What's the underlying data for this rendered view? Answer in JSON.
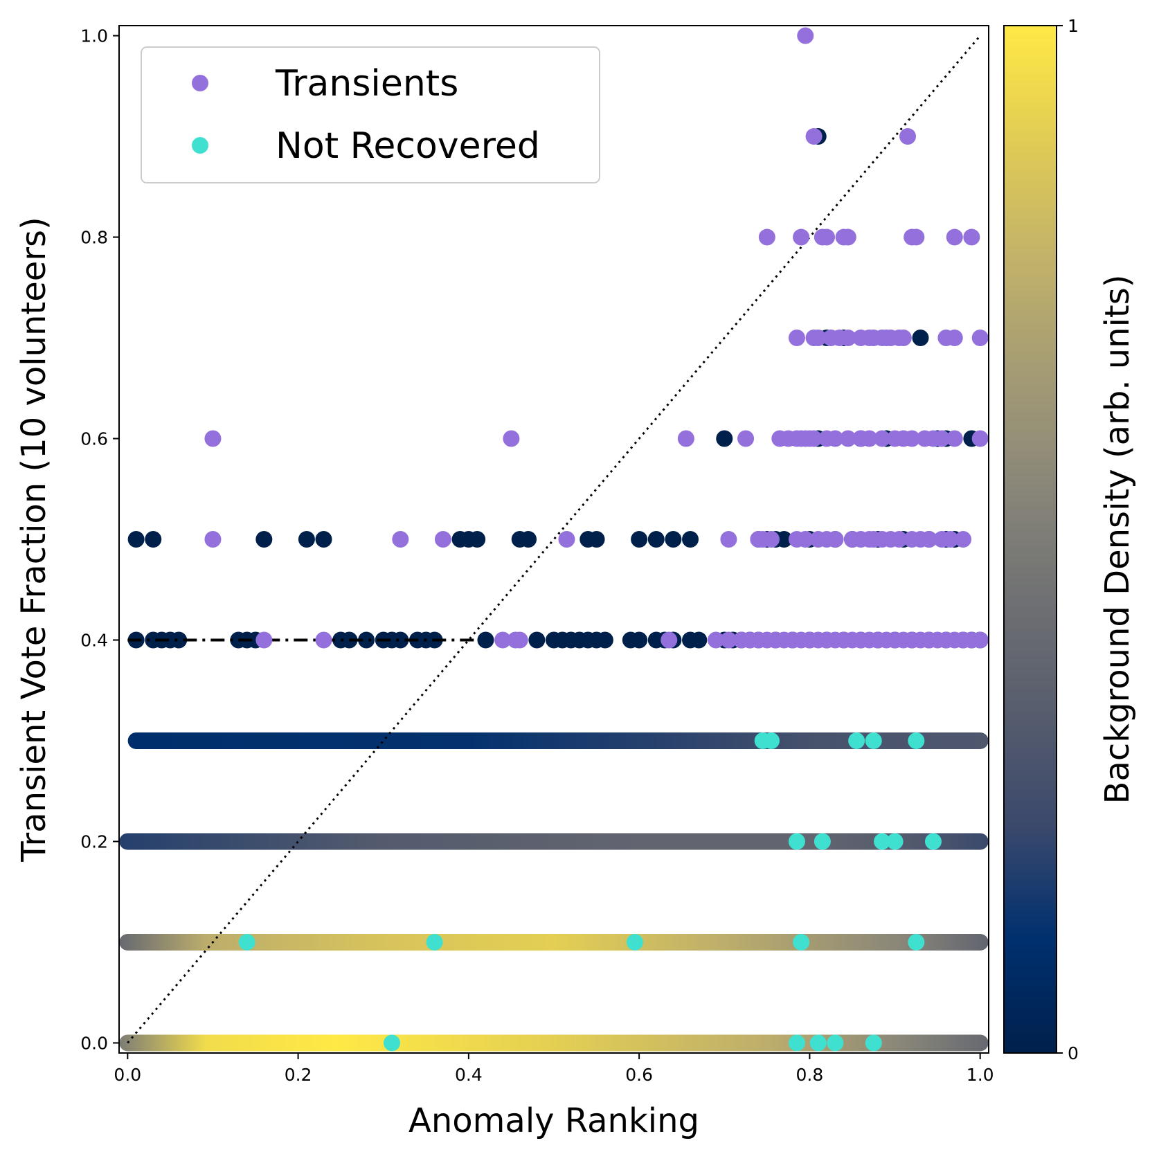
{
  "chart_data": {
    "type": "scatter",
    "title": "",
    "xlabel": "Anomaly Ranking",
    "ylabel": "Transient Vote Fraction (10 volunteers)",
    "xlim": [
      -0.01,
      1.01
    ],
    "ylim": [
      -0.01,
      1.01
    ],
    "xticks": [
      "0.0",
      "0.2",
      "0.4",
      "0.6",
      "0.8",
      "1.0"
    ],
    "yticks": [
      "0.0",
      "0.2",
      "0.4",
      "0.6",
      "0.8",
      "1.0"
    ],
    "colorbar": {
      "label": "Background Density (arb. units)",
      "min_label": "0",
      "max_label": "1",
      "colors": [
        "#00204c",
        "#00306f",
        "#3b496c",
        "#575d6d",
        "#707173",
        "#8a8779",
        "#a59c74",
        "#c3b369",
        "#e1cc55",
        "#ffe945"
      ]
    },
    "legend": {
      "position": "top-left",
      "entries": [
        {
          "label": "Transients",
          "color": "#9370db"
        },
        {
          "label": "Not Recovered",
          "color": "#40e0d0"
        }
      ]
    },
    "reference_line": {
      "style": "dotted",
      "from": [
        0,
        0
      ],
      "to": [
        1,
        1
      ]
    },
    "threshold_line": {
      "style": "dash-dot",
      "y": 0.4,
      "x_range": [
        0,
        0.41
      ]
    },
    "background": {
      "description": "Background sources at every vote fraction level, colored by density",
      "rows": [
        {
          "y": 0.0,
          "x_range": [
            0.0,
            1.0
          ],
          "gradient": [
            [
              0,
              0.5
            ],
            [
              0.1,
              0.95
            ],
            [
              0.25,
              1.0
            ],
            [
              0.5,
              0.9
            ],
            [
              0.75,
              0.75
            ],
            [
              0.9,
              0.55
            ],
            [
              1.0,
              0.4
            ]
          ]
        },
        {
          "y": 0.1,
          "x_range": [
            0.0,
            1.0
          ],
          "gradient": [
            [
              0,
              0.4
            ],
            [
              0.1,
              0.75
            ],
            [
              0.3,
              0.85
            ],
            [
              0.5,
              0.9
            ],
            [
              0.7,
              0.75
            ],
            [
              0.9,
              0.55
            ],
            [
              1.0,
              0.38
            ]
          ]
        },
        {
          "y": 0.2,
          "x_range": [
            0.0,
            1.0
          ],
          "gradient": [
            [
              0,
              0.18
            ],
            [
              0.3,
              0.32
            ],
            [
              0.6,
              0.38
            ],
            [
              0.8,
              0.38
            ],
            [
              0.9,
              0.32
            ],
            [
              1.0,
              0.22
            ]
          ]
        },
        {
          "y": 0.3,
          "x_range": [
            0.01,
            1.0
          ],
          "gradient": [
            [
              0,
              0.1
            ],
            [
              0.4,
              0.12
            ],
            [
              0.6,
              0.18
            ],
            [
              0.8,
              0.27
            ],
            [
              1.0,
              0.3
            ]
          ]
        }
      ],
      "scatter_points": [
        {
          "y": 0.4,
          "x": [
            0.01,
            0.03,
            0.04,
            0.05,
            0.06,
            0.13,
            0.14,
            0.15,
            0.25,
            0.26,
            0.28,
            0.3,
            0.31,
            0.32,
            0.34,
            0.35,
            0.36,
            0.42,
            0.48,
            0.5,
            0.51,
            0.52,
            0.53,
            0.54,
            0.55,
            0.56,
            0.59,
            0.6,
            0.62,
            0.63,
            0.64,
            0.66,
            0.67,
            0.7,
            0.71,
            0.72,
            0.73,
            0.74,
            0.76,
            0.78,
            0.8,
            0.82,
            0.84,
            0.86,
            0.88,
            0.9,
            0.92,
            0.94,
            0.96,
            0.98,
            0.99,
            1.0
          ]
        },
        {
          "y": 0.5,
          "x": [
            0.01,
            0.03,
            0.16,
            0.21,
            0.23,
            0.39,
            0.4,
            0.41,
            0.46,
            0.47,
            0.54,
            0.55,
            0.6,
            0.62,
            0.64,
            0.66,
            0.74,
            0.75,
            0.76,
            0.77,
            0.8,
            0.83,
            0.85,
            0.88,
            0.91,
            0.94,
            0.96,
            0.97
          ]
        },
        {
          "y": 0.6,
          "x": [
            0.7,
            0.81,
            0.86,
            0.89,
            0.95,
            0.96,
            0.99
          ]
        },
        {
          "y": 0.7,
          "x": [
            0.82,
            0.84,
            0.93
          ]
        },
        {
          "y": 0.9,
          "x": [
            0.81
          ]
        }
      ]
    },
    "series": [
      {
        "name": "Transients",
        "color": "#9370db",
        "points": [
          [
            0.795,
            1.0
          ],
          [
            0.805,
            0.9
          ],
          [
            0.915,
            0.9
          ],
          [
            0.75,
            0.8
          ],
          [
            0.79,
            0.8
          ],
          [
            0.815,
            0.8
          ],
          [
            0.82,
            0.8
          ],
          [
            0.84,
            0.8
          ],
          [
            0.845,
            0.8
          ],
          [
            0.92,
            0.8
          ],
          [
            0.925,
            0.8
          ],
          [
            0.97,
            0.8
          ],
          [
            0.99,
            0.8
          ],
          [
            0.785,
            0.7
          ],
          [
            0.805,
            0.7
          ],
          [
            0.81,
            0.7
          ],
          [
            0.825,
            0.7
          ],
          [
            0.835,
            0.7
          ],
          [
            0.845,
            0.7
          ],
          [
            0.86,
            0.7
          ],
          [
            0.87,
            0.7
          ],
          [
            0.875,
            0.7
          ],
          [
            0.885,
            0.7
          ],
          [
            0.89,
            0.7
          ],
          [
            0.895,
            0.7
          ],
          [
            0.905,
            0.7
          ],
          [
            0.91,
            0.7
          ],
          [
            0.96,
            0.7
          ],
          [
            0.97,
            0.7
          ],
          [
            1.0,
            0.7
          ],
          [
            0.1,
            0.6
          ],
          [
            0.45,
            0.6
          ],
          [
            0.655,
            0.6
          ],
          [
            0.725,
            0.6
          ],
          [
            0.765,
            0.6
          ],
          [
            0.775,
            0.6
          ],
          [
            0.785,
            0.6
          ],
          [
            0.79,
            0.6
          ],
          [
            0.795,
            0.6
          ],
          [
            0.8,
            0.6
          ],
          [
            0.805,
            0.6
          ],
          [
            0.82,
            0.6
          ],
          [
            0.83,
            0.6
          ],
          [
            0.845,
            0.6
          ],
          [
            0.86,
            0.6
          ],
          [
            0.87,
            0.6
          ],
          [
            0.885,
            0.6
          ],
          [
            0.9,
            0.6
          ],
          [
            0.91,
            0.6
          ],
          [
            0.92,
            0.6
          ],
          [
            0.935,
            0.6
          ],
          [
            0.945,
            0.6
          ],
          [
            0.955,
            0.6
          ],
          [
            0.97,
            0.6
          ],
          [
            1.0,
            0.6
          ],
          [
            0.1,
            0.5
          ],
          [
            0.32,
            0.5
          ],
          [
            0.37,
            0.5
          ],
          [
            0.515,
            0.5
          ],
          [
            0.705,
            0.5
          ],
          [
            0.74,
            0.5
          ],
          [
            0.745,
            0.5
          ],
          [
            0.755,
            0.5
          ],
          [
            0.785,
            0.5
          ],
          [
            0.795,
            0.5
          ],
          [
            0.81,
            0.5
          ],
          [
            0.82,
            0.5
          ],
          [
            0.83,
            0.5
          ],
          [
            0.85,
            0.5
          ],
          [
            0.86,
            0.5
          ],
          [
            0.87,
            0.5
          ],
          [
            0.875,
            0.5
          ],
          [
            0.885,
            0.5
          ],
          [
            0.895,
            0.5
          ],
          [
            0.905,
            0.5
          ],
          [
            0.92,
            0.5
          ],
          [
            0.93,
            0.5
          ],
          [
            0.94,
            0.5
          ],
          [
            0.955,
            0.5
          ],
          [
            0.965,
            0.5
          ],
          [
            0.98,
            0.5
          ],
          [
            0.16,
            0.4
          ],
          [
            0.23,
            0.4
          ],
          [
            0.44,
            0.4
          ],
          [
            0.455,
            0.4
          ],
          [
            0.46,
            0.4
          ],
          [
            0.635,
            0.4
          ],
          [
            0.69,
            0.4
          ],
          [
            0.705,
            0.4
          ],
          [
            0.72,
            0.4
          ],
          [
            0.73,
            0.4
          ],
          [
            0.74,
            0.4
          ],
          [
            0.75,
            0.4
          ],
          [
            0.76,
            0.4
          ],
          [
            0.77,
            0.4
          ],
          [
            0.78,
            0.4
          ],
          [
            0.79,
            0.4
          ],
          [
            0.8,
            0.4
          ],
          [
            0.81,
            0.4
          ],
          [
            0.82,
            0.4
          ],
          [
            0.83,
            0.4
          ],
          [
            0.84,
            0.4
          ],
          [
            0.85,
            0.4
          ],
          [
            0.86,
            0.4
          ],
          [
            0.87,
            0.4
          ],
          [
            0.88,
            0.4
          ],
          [
            0.89,
            0.4
          ],
          [
            0.9,
            0.4
          ],
          [
            0.91,
            0.4
          ],
          [
            0.92,
            0.4
          ],
          [
            0.93,
            0.4
          ],
          [
            0.94,
            0.4
          ],
          [
            0.95,
            0.4
          ],
          [
            0.96,
            0.4
          ],
          [
            0.97,
            0.4
          ],
          [
            0.98,
            0.4
          ],
          [
            0.99,
            0.4
          ],
          [
            1.0,
            0.4
          ]
        ]
      },
      {
        "name": "Not Recovered",
        "color": "#40e0d0",
        "points": [
          [
            0.745,
            0.3
          ],
          [
            0.755,
            0.3
          ],
          [
            0.855,
            0.3
          ],
          [
            0.875,
            0.3
          ],
          [
            0.925,
            0.3
          ],
          [
            0.785,
            0.2
          ],
          [
            0.815,
            0.2
          ],
          [
            0.885,
            0.2
          ],
          [
            0.9,
            0.2
          ],
          [
            0.945,
            0.2
          ],
          [
            0.14,
            0.1
          ],
          [
            0.36,
            0.1
          ],
          [
            0.595,
            0.1
          ],
          [
            0.79,
            0.1
          ],
          [
            0.925,
            0.1
          ],
          [
            0.31,
            0.0
          ],
          [
            0.785,
            0.0
          ],
          [
            0.81,
            0.0
          ],
          [
            0.83,
            0.0
          ],
          [
            0.875,
            0.0
          ]
        ]
      }
    ]
  }
}
